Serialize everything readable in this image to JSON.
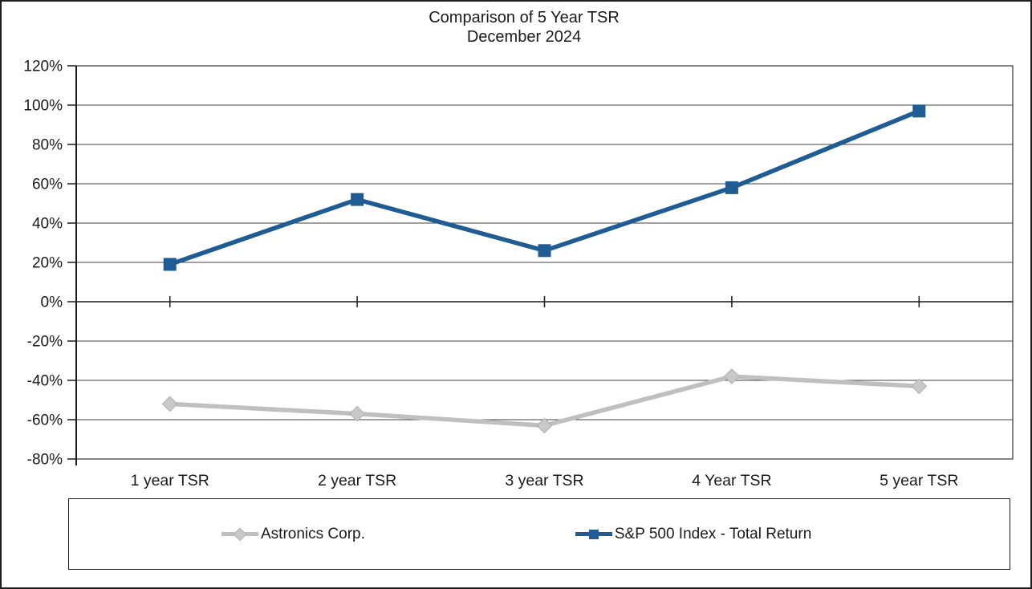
{
  "chart_data": {
    "type": "line",
    "title": "Comparison of 5 Year TSR",
    "subtitle": "December 2024",
    "categories": [
      "1 year TSR",
      "2 year TSR",
      "3 year TSR",
      "4 Year TSR",
      "5 year TSR"
    ],
    "series": [
      {
        "name": "Astronics Corp.",
        "values": [
          -52,
          -57,
          -63,
          -38,
          -43
        ],
        "color": "#BFBFBF",
        "marker_fill": "#C8C8C8",
        "marker_edge": "#AFAFAF",
        "marker": "diamond"
      },
      {
        "name": "S&P 500 Index - Total Return",
        "values": [
          19,
          52,
          26,
          58,
          97
        ],
        "color": "#1F5C94",
        "marker_fill": "#1F5C94",
        "marker_edge": "#1F5C94",
        "marker": "square"
      }
    ],
    "ylim": [
      -80,
      120
    ],
    "ytick_step": 20,
    "ytick_labels": [
      "120%",
      "100%",
      "80%",
      "60%",
      "40%",
      "20%",
      "0%",
      "-20%",
      "-40%",
      "-60%",
      "-80%"
    ],
    "xlabel": "",
    "ylabel": "",
    "grid": true,
    "legend_position": "bottom",
    "axis_color": "#1a1a1a",
    "gridline_color": "#404040"
  }
}
